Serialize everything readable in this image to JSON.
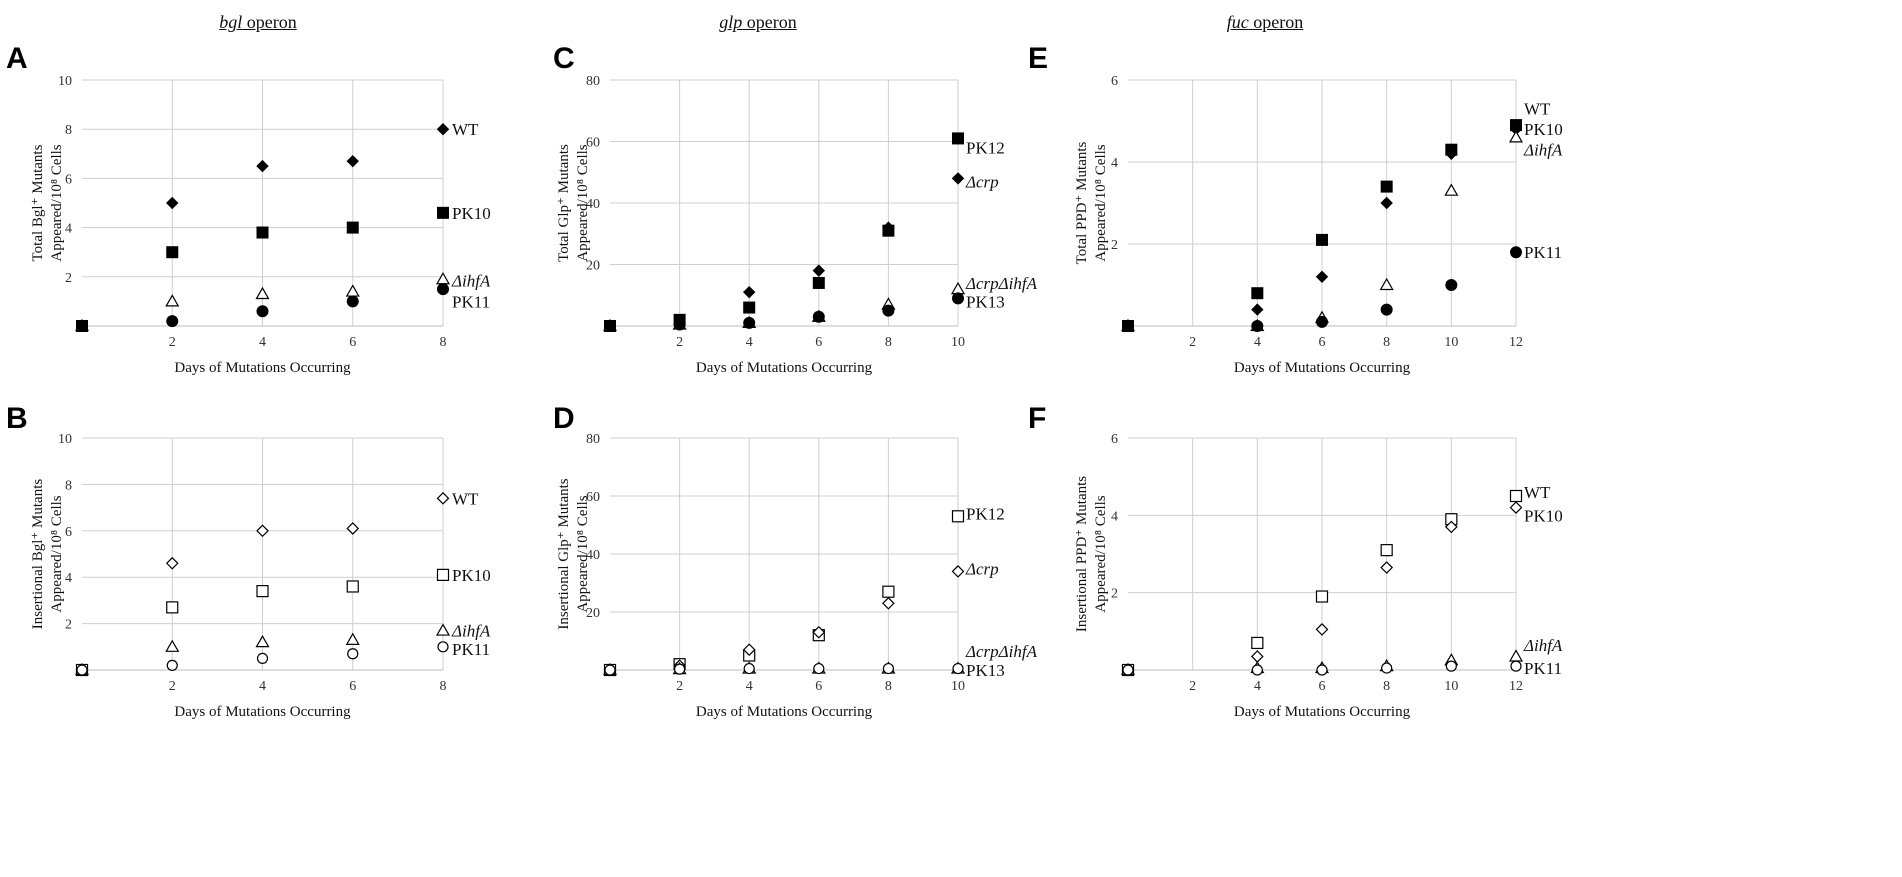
{
  "column_titles": [
    {
      "gene": "bgl",
      "suffix": " operon"
    },
    {
      "gene": "glp",
      "suffix": " operon"
    },
    {
      "gene": "fuc",
      "suffix": " operon"
    }
  ],
  "panel_letters": [
    "A",
    "B",
    "C",
    "D",
    "E",
    "F"
  ],
  "chart_data": [
    {
      "panel": "A",
      "type": "scatter",
      "operon": "bgl operon",
      "xlabel": "Days of Mutations Occurring",
      "ylabel_lines": [
        "Total Bgl⁺ Mutants",
        "Appeared/10⁸ Cells"
      ],
      "xlim": [
        0,
        8
      ],
      "ylim": [
        0,
        10
      ],
      "x_ticks": [
        2,
        4,
        6,
        8
      ],
      "y_ticks": [
        2,
        4,
        6,
        8,
        10
      ],
      "y_tick_labels": [
        "",
        "2",
        "4",
        "6",
        "8",
        "10"
      ],
      "series": [
        {
          "name": "WT",
          "italic": false,
          "marker": "diamond",
          "filled": true,
          "x": [
            0,
            2,
            4,
            6,
            8
          ],
          "values": [
            0,
            5.0,
            6.5,
            6.7,
            8.0
          ],
          "label_y": 8.0
        },
        {
          "name": "PK10",
          "italic": false,
          "marker": "square",
          "filled": true,
          "x": [
            0,
            2,
            4,
            6,
            8
          ],
          "values": [
            0,
            3.0,
            3.8,
            4.0,
            4.6
          ],
          "label_y": 4.6
        },
        {
          "name": "ΔihfA",
          "italic": true,
          "marker": "triangle",
          "filled": false,
          "x": [
            0,
            2,
            4,
            6,
            8
          ],
          "values": [
            0,
            1.0,
            1.3,
            1.4,
            1.9
          ],
          "label_y": 1.85
        },
        {
          "name": "PK11",
          "italic": false,
          "marker": "circle",
          "filled": true,
          "x": [
            0,
            2,
            4,
            6,
            8
          ],
          "values": [
            0,
            0.2,
            0.6,
            1.0,
            1.5
          ],
          "label_y": 1.0
        }
      ]
    },
    {
      "panel": "B",
      "type": "scatter",
      "operon": "bgl operon",
      "xlabel": "Days of Mutations Occurring",
      "ylabel_lines": [
        "Insertional Bgl⁺ Mutants",
        "Appeared/10⁸ Cells"
      ],
      "xlim": [
        0,
        8
      ],
      "ylim": [
        0,
        10
      ],
      "x_ticks": [
        2,
        4,
        6,
        8
      ],
      "y_ticks": [
        2,
        4,
        6,
        8,
        10
      ],
      "y_tick_labels": [
        "",
        "2",
        "4",
        "6",
        "8",
        "10"
      ],
      "series": [
        {
          "name": "WT",
          "italic": false,
          "marker": "diamond",
          "filled": false,
          "x": [
            0,
            2,
            4,
            6,
            8
          ],
          "values": [
            0,
            4.6,
            6.0,
            6.1,
            7.4
          ],
          "label_y": 7.4
        },
        {
          "name": "PK10",
          "italic": false,
          "marker": "square",
          "filled": false,
          "x": [
            0,
            2,
            4,
            6,
            8
          ],
          "values": [
            0,
            2.7,
            3.4,
            3.6,
            4.1
          ],
          "label_y": 4.1
        },
        {
          "name": "ΔihfA",
          "italic": true,
          "marker": "triangle",
          "filled": false,
          "x": [
            0,
            2,
            4,
            6,
            8
          ],
          "values": [
            0,
            1.0,
            1.2,
            1.3,
            1.7
          ],
          "label_y": 1.7
        },
        {
          "name": "PK11",
          "italic": false,
          "marker": "circle",
          "filled": false,
          "x": [
            0,
            2,
            4,
            6,
            8
          ],
          "values": [
            0,
            0.2,
            0.5,
            0.7,
            1.0
          ],
          "label_y": 0.9
        }
      ]
    },
    {
      "panel": "C",
      "type": "scatter",
      "operon": "glp operon",
      "xlabel": "Days of Mutations Occurring",
      "ylabel_lines": [
        "Total Glp⁺ Mutants",
        "Appeared/10⁸ Cells"
      ],
      "xlim": [
        0,
        10
      ],
      "ylim": [
        0,
        80
      ],
      "x_ticks": [
        2,
        4,
        6,
        8,
        10
      ],
      "y_ticks": [
        20,
        40,
        60,
        80
      ],
      "y_tick_labels": [
        "",
        "20",
        "40",
        "60",
        "80"
      ],
      "series": [
        {
          "name": "PK12",
          "italic": false,
          "marker": "square",
          "filled": true,
          "x": [
            0,
            2,
            4,
            6,
            8,
            10
          ],
          "values": [
            0,
            2,
            6,
            14,
            31,
            61
          ],
          "label_y": 58
        },
        {
          "name": "Δcrp",
          "italic": true,
          "marker": "diamond",
          "filled": true,
          "x": [
            0,
            2,
            4,
            6,
            8,
            10
          ],
          "values": [
            0,
            1,
            11,
            18,
            32,
            48
          ],
          "label_y": 47
        },
        {
          "name": "ΔcrpΔihfA",
          "italic": true,
          "marker": "triangle",
          "filled": false,
          "x": [
            0,
            2,
            4,
            6,
            8,
            10
          ],
          "values": [
            0,
            0.5,
            1,
            3,
            7,
            12
          ],
          "label_y": 14
        },
        {
          "name": "PK13",
          "italic": false,
          "marker": "circle",
          "filled": true,
          "x": [
            0,
            2,
            4,
            6,
            8,
            10
          ],
          "values": [
            0,
            0.5,
            1,
            3,
            5,
            9
          ],
          "label_y": 8
        }
      ]
    },
    {
      "panel": "D",
      "type": "scatter",
      "operon": "glp operon",
      "xlabel": "Days of Mutations Occurring",
      "ylabel_lines": [
        "Insertional Glp⁺ Mutants",
        "Appeared/10⁸ Cells"
      ],
      "xlim": [
        0,
        10
      ],
      "ylim": [
        0,
        80
      ],
      "x_ticks": [
        2,
        4,
        6,
        8,
        10
      ],
      "y_ticks": [
        20,
        40,
        60,
        80
      ],
      "y_tick_labels": [
        "",
        "20",
        "40",
        "60",
        "80"
      ],
      "series": [
        {
          "name": "PK12",
          "italic": false,
          "marker": "square",
          "filled": false,
          "x": [
            0,
            2,
            4,
            6,
            8,
            10
          ],
          "values": [
            0,
            2,
            5,
            12,
            27,
            53
          ],
          "label_y": 54
        },
        {
          "name": "Δcrp",
          "italic": true,
          "marker": "diamond",
          "filled": false,
          "x": [
            0,
            2,
            4,
            6,
            8,
            10
          ],
          "values": [
            0,
            1.5,
            7,
            13,
            23,
            34
          ],
          "label_y": 35
        },
        {
          "name": "ΔcrpΔihfA",
          "italic": true,
          "marker": "triangle",
          "filled": false,
          "x": [
            0,
            2,
            4,
            6,
            8,
            10
          ],
          "values": [
            0,
            0.3,
            0.5,
            0.5,
            0.5,
            0.5
          ],
          "label_y": 6.5
        },
        {
          "name": "PK13",
          "italic": false,
          "marker": "circle",
          "filled": false,
          "x": [
            0,
            2,
            4,
            6,
            8,
            10
          ],
          "values": [
            0,
            0.3,
            0.5,
            0.5,
            0.5,
            0.5
          ],
          "label_y": 0
        }
      ]
    },
    {
      "panel": "E",
      "type": "scatter",
      "operon": "fuc operon",
      "xlabel": "Days of Mutations Occurring",
      "ylabel_lines": [
        "Total PPD⁺ Mutants",
        "Appeared/10⁸ Cells"
      ],
      "xlim": [
        0,
        12
      ],
      "ylim": [
        0,
        6
      ],
      "x_ticks": [
        2,
        4,
        6,
        8,
        10,
        12
      ],
      "y_ticks": [
        2,
        4,
        6
      ],
      "y_tick_labels": [
        "",
        "2",
        "4",
        "6"
      ],
      "series": [
        {
          "name": "WT",
          "italic": false,
          "marker": "diamond",
          "filled": true,
          "x": [
            0,
            4,
            6,
            8,
            10,
            12
          ],
          "values": [
            0,
            0.4,
            1.2,
            3.0,
            4.2,
            4.8
          ],
          "label_y": 5.3
        },
        {
          "name": "PK10",
          "italic": false,
          "marker": "square",
          "filled": true,
          "x": [
            0,
            4,
            6,
            8,
            10,
            12
          ],
          "values": [
            0,
            0.8,
            2.1,
            3.4,
            4.3,
            4.9
          ],
          "label_y": 4.8
        },
        {
          "name": "ΔihfA",
          "italic": true,
          "marker": "triangle",
          "filled": false,
          "x": [
            0,
            4,
            6,
            8,
            10,
            12
          ],
          "values": [
            0,
            0,
            0.2,
            1.0,
            3.3,
            4.6
          ],
          "label_y": 4.3
        },
        {
          "name": "PK11",
          "italic": false,
          "marker": "circle",
          "filled": true,
          "x": [
            0,
            4,
            6,
            8,
            10,
            12
          ],
          "values": [
            0,
            0,
            0.1,
            0.4,
            1.0,
            1.8
          ],
          "label_y": 1.8
        }
      ]
    },
    {
      "panel": "F",
      "type": "scatter",
      "operon": "fuc operon",
      "xlabel": "Days of Mutations Occurring",
      "ylabel_lines": [
        "Insertional PPD⁺ Mutants",
        "Appeared/10⁸ Cells"
      ],
      "xlim": [
        0,
        12
      ],
      "ylim": [
        0,
        6
      ],
      "x_ticks": [
        2,
        4,
        6,
        8,
        10,
        12
      ],
      "y_ticks": [
        2,
        4,
        6
      ],
      "y_tick_labels": [
        "",
        "2",
        "4",
        "6"
      ],
      "series": [
        {
          "name": "WT",
          "italic": false,
          "marker": "square",
          "filled": false,
          "x": [
            0,
            4,
            6,
            8,
            10,
            12
          ],
          "values": [
            0,
            0.7,
            1.9,
            3.1,
            3.9,
            4.5
          ],
          "label_y": 4.6
        },
        {
          "name": "PK10",
          "italic": false,
          "marker": "diamond",
          "filled": false,
          "x": [
            0,
            4,
            6,
            8,
            10,
            12
          ],
          "values": [
            0,
            0.35,
            1.05,
            2.65,
            3.7,
            4.2
          ],
          "label_y": 4.0
        },
        {
          "name": "ΔihfA",
          "italic": true,
          "marker": "triangle",
          "filled": false,
          "x": [
            0,
            4,
            6,
            8,
            10,
            12
          ],
          "values": [
            0,
            0.05,
            0.05,
            0.1,
            0.25,
            0.35
          ],
          "label_y": 0.65
        },
        {
          "name": "PK11",
          "italic": false,
          "marker": "circle",
          "filled": false,
          "x": [
            0,
            4,
            6,
            8,
            10,
            12
          ],
          "values": [
            0,
            0,
            0,
            0.05,
            0.1,
            0.1
          ],
          "label_y": 0.05
        }
      ]
    }
  ]
}
